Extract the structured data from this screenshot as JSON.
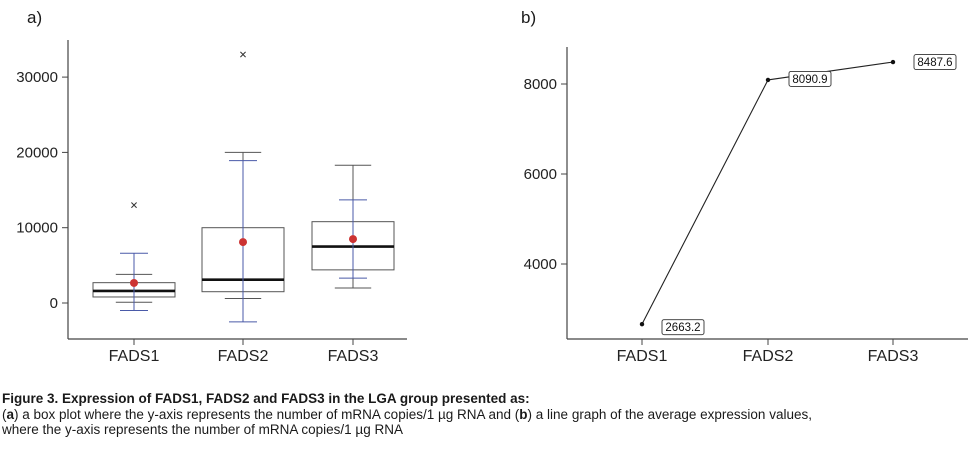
{
  "chart_data": [
    {
      "panel": "a)",
      "type": "box",
      "categories": [
        "FADS1",
        "FADS2",
        "FADS3"
      ],
      "ylim": [
        -2000,
        35000
      ],
      "yticks": [
        0,
        10000,
        20000,
        30000
      ],
      "boxes": [
        {
          "name": "FADS1",
          "q1": 800,
          "median": 1600,
          "q3": 2700,
          "whisker_low": 100,
          "whisker_high": 3800,
          "outliers": [
            13000
          ],
          "mean": 2663.2,
          "ci_low": -1000,
          "ci_high": 6600
        },
        {
          "name": "FADS2",
          "q1": 1500,
          "median": 3100,
          "q3": 10000,
          "whisker_low": 600,
          "whisker_high": 20000,
          "outliers": [
            33000
          ],
          "mean": 8090.9,
          "ci_low": -2500,
          "ci_high": 18900
        },
        {
          "name": "FADS3",
          "q1": 4400,
          "median": 7500,
          "q3": 10800,
          "whisker_low": 2000,
          "whisker_high": 18300,
          "outliers": [],
          "mean": 8487.6,
          "ci_low": 3300,
          "ci_high": 13700
        }
      ],
      "colors": {
        "box": "#555555",
        "median": "#111111",
        "mean_point": "#cc3333",
        "error_bar": "#4a5aa8",
        "outlier": "#333333"
      }
    },
    {
      "panel": "b)",
      "type": "line",
      "categories": [
        "FADS1",
        "FADS2",
        "FADS3"
      ],
      "values": [
        2663.2,
        8090.9,
        8487.6
      ],
      "data_labels": [
        "2663.2",
        "8090.9",
        "8487.6"
      ],
      "ylim": [
        2400,
        8800
      ],
      "yticks": [
        4000,
        6000,
        8000
      ],
      "colors": {
        "line": "#222222"
      }
    }
  ],
  "caption": {
    "title": "Figure 3. Expression of FADS1, FADS2 and FADS3 in the LGA group presented as:",
    "line1_parts": [
      "(",
      "a",
      ") a box plot where the y-axis represents the number of mRNA copies/1 µg RNA and (",
      "b",
      ") a line graph of the average expression values,"
    ],
    "line2": "where the y-axis represents the number of mRNA copies/1 µg RNA"
  }
}
